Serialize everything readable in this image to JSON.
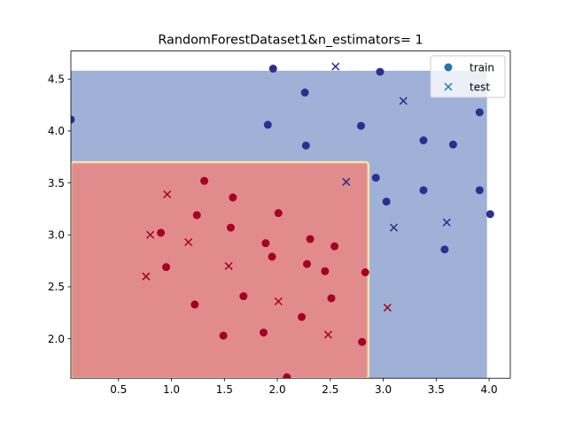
{
  "chart_data": {
    "type": "scatter",
    "title": "RandomForestDataset1&n_estimators= 1",
    "xlabel": "",
    "ylabel": "",
    "xlim": [
      0.05,
      4.2
    ],
    "ylim": [
      1.62,
      4.77
    ],
    "xticks": [
      0.5,
      1.0,
      1.5,
      2.0,
      2.5,
      3.0,
      3.5,
      4.0
    ],
    "xtick_labels": [
      "0.5",
      "1.0",
      "1.5",
      "2.0",
      "2.5",
      "3.0",
      "3.5",
      "4.0"
    ],
    "yticks": [
      2.0,
      2.5,
      3.0,
      3.5,
      4.0,
      4.5
    ],
    "ytick_labels": [
      "2.0",
      "2.5",
      "3.0",
      "3.5",
      "4.0",
      "4.5"
    ],
    "grid": false,
    "legend_position": "top-right",
    "legend": [
      {
        "label": "train",
        "marker": "circle",
        "color": "#1f77b4"
      },
      {
        "label": "test",
        "marker": "x",
        "color": "#1f77b4"
      }
    ],
    "decision_regions": [
      {
        "class": 0,
        "color": "#9fb1d6",
        "x": [
          0.05,
          3.98
        ],
        "y": [
          1.62,
          4.58
        ]
      },
      {
        "class": 1,
        "color": "#e28b8d",
        "x": [
          0.05,
          2.86
        ],
        "y": [
          1.62,
          3.7
        ]
      }
    ],
    "class_colors": {
      "class0": "#2b2f8f",
      "class1": "#a50026"
    },
    "series": [
      {
        "name": "train",
        "marker": "circle",
        "points": [
          {
            "x": 0.05,
            "y": 4.11,
            "c": 0
          },
          {
            "x": 1.96,
            "y": 4.6,
            "c": 0
          },
          {
            "x": 2.26,
            "y": 4.37,
            "c": 0
          },
          {
            "x": 2.97,
            "y": 4.57,
            "c": 0
          },
          {
            "x": 1.91,
            "y": 4.06,
            "c": 0
          },
          {
            "x": 2.27,
            "y": 3.86,
            "c": 0
          },
          {
            "x": 2.79,
            "y": 4.05,
            "c": 0
          },
          {
            "x": 3.38,
            "y": 3.91,
            "c": 0
          },
          {
            "x": 3.66,
            "y": 3.87,
            "c": 0
          },
          {
            "x": 3.91,
            "y": 4.18,
            "c": 0
          },
          {
            "x": 2.93,
            "y": 3.55,
            "c": 0
          },
          {
            "x": 3.03,
            "y": 3.32,
            "c": 0
          },
          {
            "x": 3.38,
            "y": 3.43,
            "c": 0
          },
          {
            "x": 3.91,
            "y": 3.43,
            "c": 0
          },
          {
            "x": 4.01,
            "y": 3.2,
            "c": 0
          },
          {
            "x": 3.58,
            "y": 2.86,
            "c": 0
          },
          {
            "x": 1.31,
            "y": 3.52,
            "c": 1
          },
          {
            "x": 1.58,
            "y": 3.36,
            "c": 1
          },
          {
            "x": 1.24,
            "y": 3.19,
            "c": 1
          },
          {
            "x": 2.01,
            "y": 3.21,
            "c": 1
          },
          {
            "x": 0.9,
            "y": 3.02,
            "c": 1
          },
          {
            "x": 1.56,
            "y": 3.07,
            "c": 1
          },
          {
            "x": 1.89,
            "y": 2.92,
            "c": 1
          },
          {
            "x": 2.31,
            "y": 2.96,
            "c": 1
          },
          {
            "x": 2.54,
            "y": 2.89,
            "c": 1
          },
          {
            "x": 0.95,
            "y": 2.69,
            "c": 1
          },
          {
            "x": 1.95,
            "y": 2.79,
            "c": 1
          },
          {
            "x": 2.28,
            "y": 2.72,
            "c": 1
          },
          {
            "x": 2.45,
            "y": 2.65,
            "c": 1
          },
          {
            "x": 2.83,
            "y": 2.64,
            "c": 1
          },
          {
            "x": 1.68,
            "y": 2.41,
            "c": 1
          },
          {
            "x": 2.51,
            "y": 2.39,
            "c": 1
          },
          {
            "x": 1.22,
            "y": 2.33,
            "c": 1
          },
          {
            "x": 2.23,
            "y": 2.21,
            "c": 1
          },
          {
            "x": 1.87,
            "y": 2.06,
            "c": 1
          },
          {
            "x": 1.49,
            "y": 2.03,
            "c": 1
          },
          {
            "x": 2.8,
            "y": 1.97,
            "c": 1
          },
          {
            "x": 2.09,
            "y": 1.63,
            "c": 1
          }
        ]
      },
      {
        "name": "test",
        "marker": "x",
        "points": [
          {
            "x": 2.55,
            "y": 4.62,
            "c": 0
          },
          {
            "x": 3.19,
            "y": 4.29,
            "c": 0
          },
          {
            "x": 2.65,
            "y": 3.51,
            "c": 0
          },
          {
            "x": 3.1,
            "y": 3.07,
            "c": 0
          },
          {
            "x": 3.6,
            "y": 3.12,
            "c": 0
          },
          {
            "x": 0.96,
            "y": 3.39,
            "c": 1
          },
          {
            "x": 0.8,
            "y": 3.0,
            "c": 1
          },
          {
            "x": 1.16,
            "y": 2.93,
            "c": 1
          },
          {
            "x": 1.54,
            "y": 2.7,
            "c": 1
          },
          {
            "x": 0.76,
            "y": 2.6,
            "c": 1
          },
          {
            "x": 2.01,
            "y": 2.36,
            "c": 1
          },
          {
            "x": 3.04,
            "y": 2.3,
            "c": 1
          },
          {
            "x": 2.48,
            "y": 2.04,
            "c": 1
          }
        ]
      }
    ]
  }
}
